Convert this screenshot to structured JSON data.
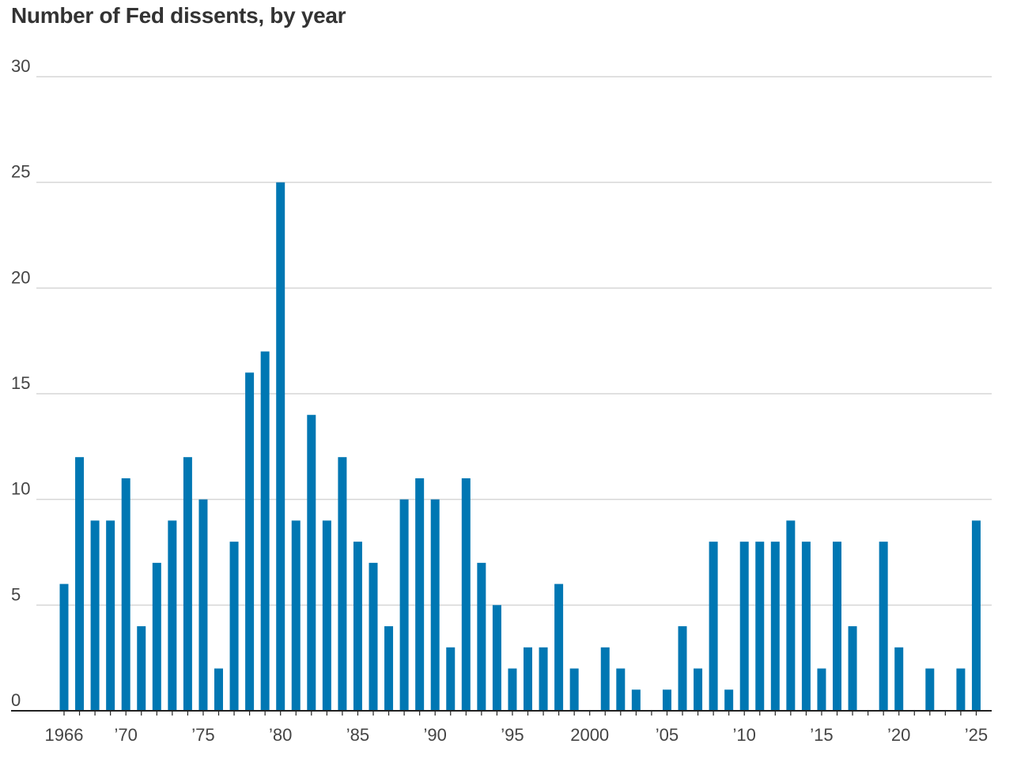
{
  "chart_data": {
    "type": "bar",
    "title": "Number of Fed dissents, by year",
    "xlabel": "",
    "ylabel": "",
    "ylim": [
      0,
      30
    ],
    "y_ticks": [
      0,
      5,
      10,
      15,
      20,
      25,
      30
    ],
    "grid": true,
    "bar_color": "#0077b3",
    "categories": [
      1966,
      1967,
      1968,
      1969,
      1970,
      1971,
      1972,
      1973,
      1974,
      1975,
      1976,
      1977,
      1978,
      1979,
      1980,
      1981,
      1982,
      1983,
      1984,
      1985,
      1986,
      1987,
      1988,
      1989,
      1990,
      1991,
      1992,
      1993,
      1994,
      1995,
      1996,
      1997,
      1998,
      1999,
      2000,
      2001,
      2002,
      2003,
      2004,
      2005,
      2006,
      2007,
      2008,
      2009,
      2010,
      2011,
      2012,
      2013,
      2014,
      2015,
      2016,
      2017,
      2018,
      2019,
      2020,
      2021,
      2022,
      2023,
      2024,
      2025
    ],
    "values": [
      6,
      12,
      9,
      9,
      11,
      4,
      7,
      9,
      12,
      10,
      2,
      8,
      16,
      17,
      25,
      9,
      14,
      9,
      12,
      8,
      7,
      4,
      10,
      11,
      10,
      3,
      11,
      7,
      5,
      2,
      3,
      3,
      6,
      2,
      0,
      3,
      2,
      1,
      0,
      1,
      4,
      2,
      8,
      1,
      8,
      8,
      8,
      9,
      8,
      2,
      8,
      4,
      0,
      8,
      3,
      0,
      2,
      0,
      2,
      9
    ],
    "x_tick_labels": [
      {
        "year": 1966,
        "label": "1966"
      },
      {
        "year": 1970,
        "label": "’70"
      },
      {
        "year": 1975,
        "label": "’75"
      },
      {
        "year": 1980,
        "label": "’80"
      },
      {
        "year": 1985,
        "label": "’85"
      },
      {
        "year": 1990,
        "label": "’90"
      },
      {
        "year": 1995,
        "label": "’95"
      },
      {
        "year": 2000,
        "label": "2000"
      },
      {
        "year": 2005,
        "label": "’05"
      },
      {
        "year": 2010,
        "label": "’10"
      },
      {
        "year": 2015,
        "label": "’15"
      },
      {
        "year": 2020,
        "label": "’20"
      },
      {
        "year": 2025,
        "label": "’25"
      }
    ]
  }
}
